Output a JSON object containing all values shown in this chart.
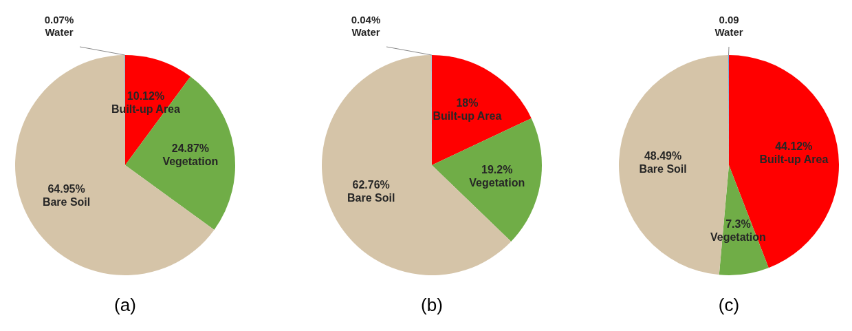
{
  "chart_data": [
    {
      "type": "pie",
      "title": "(a)",
      "categories": [
        "Built-up Area",
        "Vegetation",
        "Bare Soil",
        "Water"
      ],
      "values": [
        10.12,
        24.87,
        64.95,
        0.07
      ],
      "value_labels": [
        "10.12%",
        "24.87%",
        "64.95%",
        "0.07%"
      ],
      "colors": [
        "#ff0000",
        "#70ad47",
        "#d5c4a8",
        "#5b9bd5"
      ]
    },
    {
      "type": "pie",
      "title": "(b)",
      "categories": [
        "Built-up Area",
        "Vegetation",
        "Bare Soil",
        "Water"
      ],
      "values": [
        18,
        19.2,
        62.76,
        0.04
      ],
      "value_labels": [
        "18%",
        "19.2%",
        "62.76%",
        "0.04%"
      ],
      "colors": [
        "#ff0000",
        "#70ad47",
        "#d5c4a8",
        "#5b9bd5"
      ]
    },
    {
      "type": "pie",
      "title": "(c)",
      "categories": [
        "Built-up Area",
        "Vegetation",
        "Bare Soil",
        "Water"
      ],
      "values": [
        44.12,
        7.3,
        48.49,
        0.09
      ],
      "value_labels": [
        "44.12%",
        "7.3%",
        "48.49%",
        "0.09"
      ],
      "colors": [
        "#ff0000",
        "#70ad47",
        "#d5c4a8",
        "#5b9bd5"
      ]
    }
  ]
}
